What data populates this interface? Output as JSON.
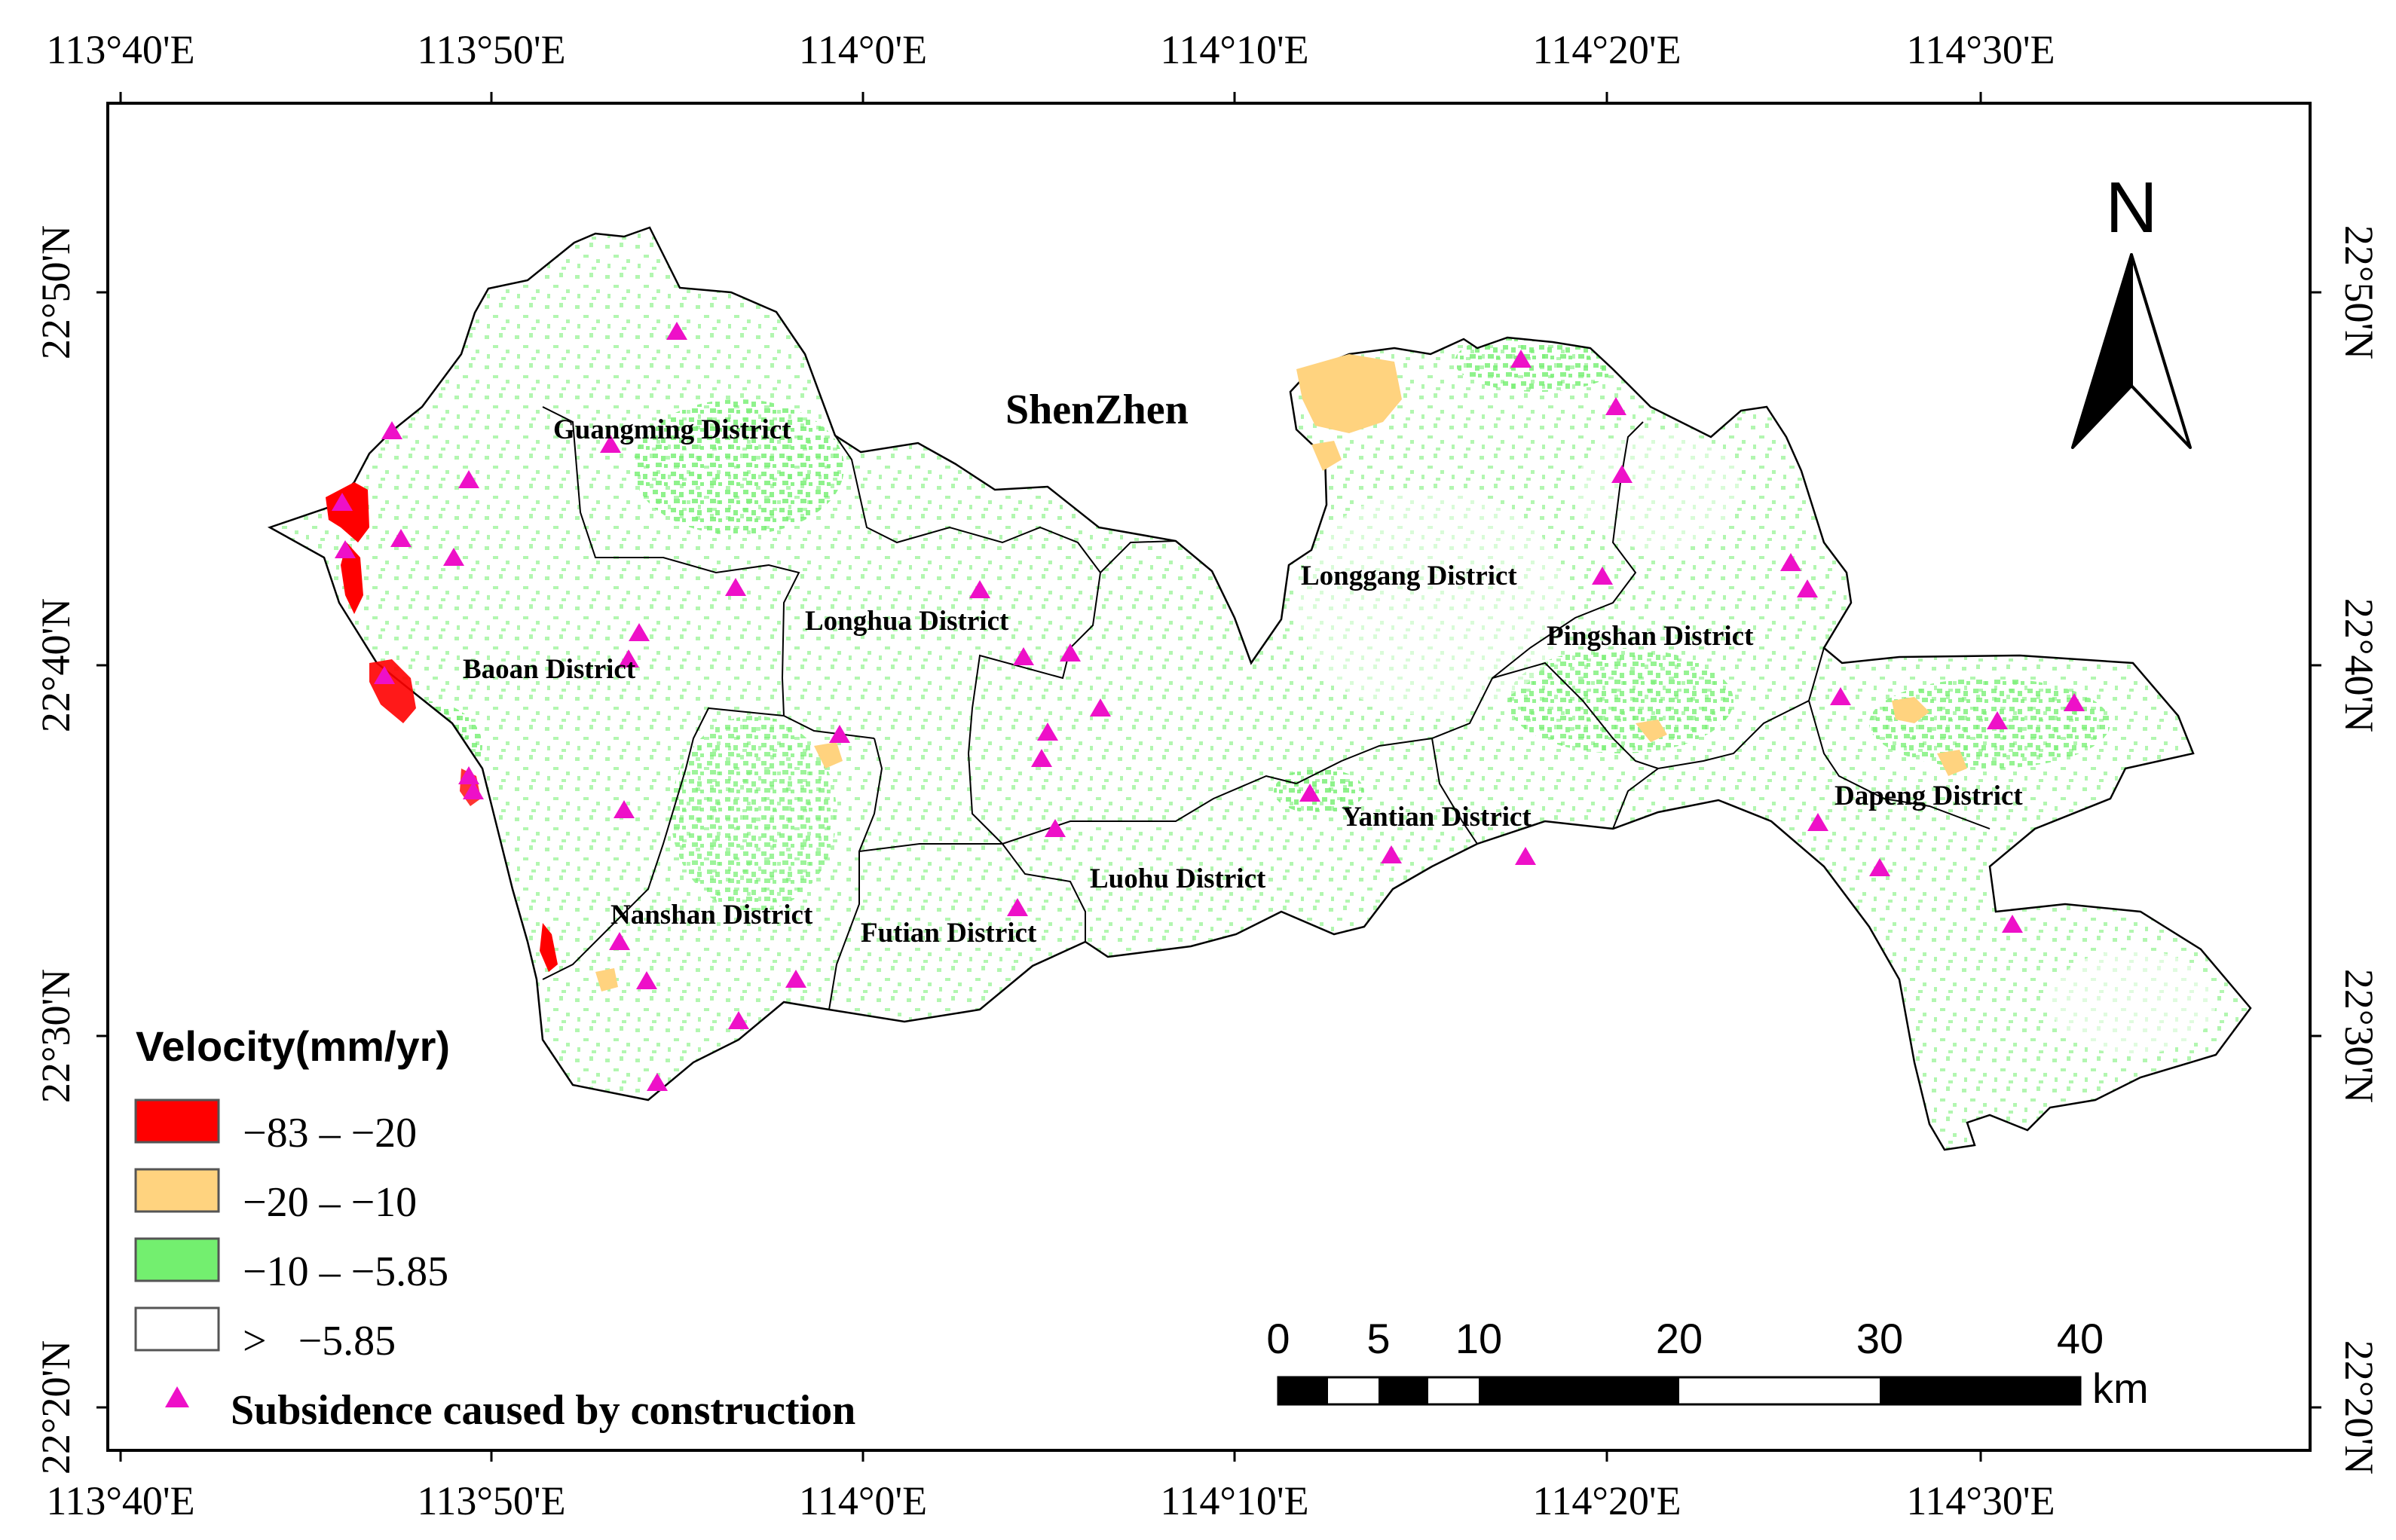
{
  "map": {
    "city_label": "ShenZhen",
    "districts": [
      {
        "name": "Guangming District"
      },
      {
        "name": "Baoan District"
      },
      {
        "name": "Longhua District"
      },
      {
        "name": "Longgang District"
      },
      {
        "name": "Pingshan District"
      },
      {
        "name": "Nanshan District"
      },
      {
        "name": "Futian District"
      },
      {
        "name": "Luohu District"
      },
      {
        "name": "Yantian District"
      },
      {
        "name": "Dapeng District"
      }
    ],
    "lon_ticks": [
      "113°40'E",
      "113°50'E",
      "114°0'E",
      "114°10'E",
      "114°20'E",
      "114°30'E"
    ],
    "lat_ticks": [
      "22°50'N",
      "22°40'N",
      "22°30'N",
      "22°20'N"
    ],
    "north_arrow": {
      "label": "N",
      "icon": "north-arrow-icon"
    },
    "scale_bar": {
      "labels": [
        "0",
        "5",
        "10",
        "20",
        "30",
        "40"
      ],
      "unit": "km"
    },
    "legend": {
      "title": "Velocity(mm/yr)",
      "classes": [
        {
          "label": "−83 – −20",
          "color": "#ff0000"
        },
        {
          "label": "−20 – −10",
          "color": "#ffd37f"
        },
        {
          "label": "−10 – −5.85",
          "color": "#73ef6f"
        },
        {
          "label": ">   −5.85",
          "color": "#ffffff"
        }
      ],
      "marker": {
        "label": "Subsidence caused by construction",
        "color": "#ee10c8",
        "icon": "magenta-triangle-icon"
      }
    },
    "colors": {
      "red": "#ff0000",
      "orange": "#ffd37f",
      "green": "#73ef6f",
      "marker": "#ee10c8"
    }
  }
}
